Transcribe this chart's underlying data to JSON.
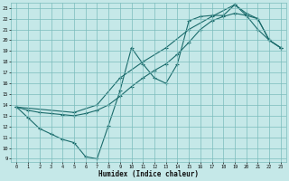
{
  "xlabel": "Humidex (Indice chaleur)",
  "xlim": [
    -0.5,
    23.5
  ],
  "ylim": [
    8.7,
    23.5
  ],
  "yticks": [
    9,
    10,
    11,
    12,
    13,
    14,
    15,
    16,
    17,
    18,
    19,
    20,
    21,
    22,
    23
  ],
  "xticks": [
    0,
    1,
    2,
    3,
    4,
    5,
    6,
    7,
    8,
    9,
    10,
    11,
    12,
    13,
    14,
    15,
    16,
    17,
    18,
    19,
    20,
    21,
    22,
    23
  ],
  "background_color": "#c5e8e8",
  "grid_color": "#7bbcbc",
  "line_color": "#1a6b6b",
  "line1_x": [
    0,
    1,
    2,
    3,
    4,
    5,
    6,
    7,
    8,
    9,
    10,
    11,
    12,
    13,
    14,
    15,
    16,
    17,
    18,
    19,
    20,
    21,
    22,
    23
  ],
  "line1_y": [
    13.8,
    12.8,
    11.8,
    11.3,
    10.8,
    10.5,
    9.2,
    9.0,
    12.1,
    15.3,
    19.3,
    17.8,
    16.5,
    16.0,
    17.8,
    21.8,
    22.2,
    22.3,
    22.3,
    23.3,
    22.5,
    22.0,
    20.0,
    19.3
  ],
  "line2_x": [
    0,
    1,
    2,
    3,
    4,
    5,
    6,
    7,
    8,
    9,
    10,
    11,
    12,
    13,
    14,
    15,
    16,
    17,
    18,
    19,
    20,
    21,
    22,
    23
  ],
  "line2_y": [
    13.8,
    13.5,
    13.3,
    13.2,
    13.1,
    13.0,
    13.2,
    13.5,
    14.0,
    14.8,
    15.7,
    16.5,
    17.2,
    17.8,
    18.7,
    19.8,
    21.0,
    21.8,
    22.2,
    22.5,
    22.3,
    21.0,
    20.0,
    19.3
  ],
  "line3_x": [
    0,
    5,
    7,
    9,
    11,
    13,
    15,
    17,
    19,
    20,
    21,
    22,
    23
  ],
  "line3_y": [
    13.8,
    13.3,
    14.0,
    16.5,
    18.0,
    19.3,
    21.0,
    22.2,
    23.3,
    22.3,
    22.0,
    20.0,
    19.3
  ]
}
